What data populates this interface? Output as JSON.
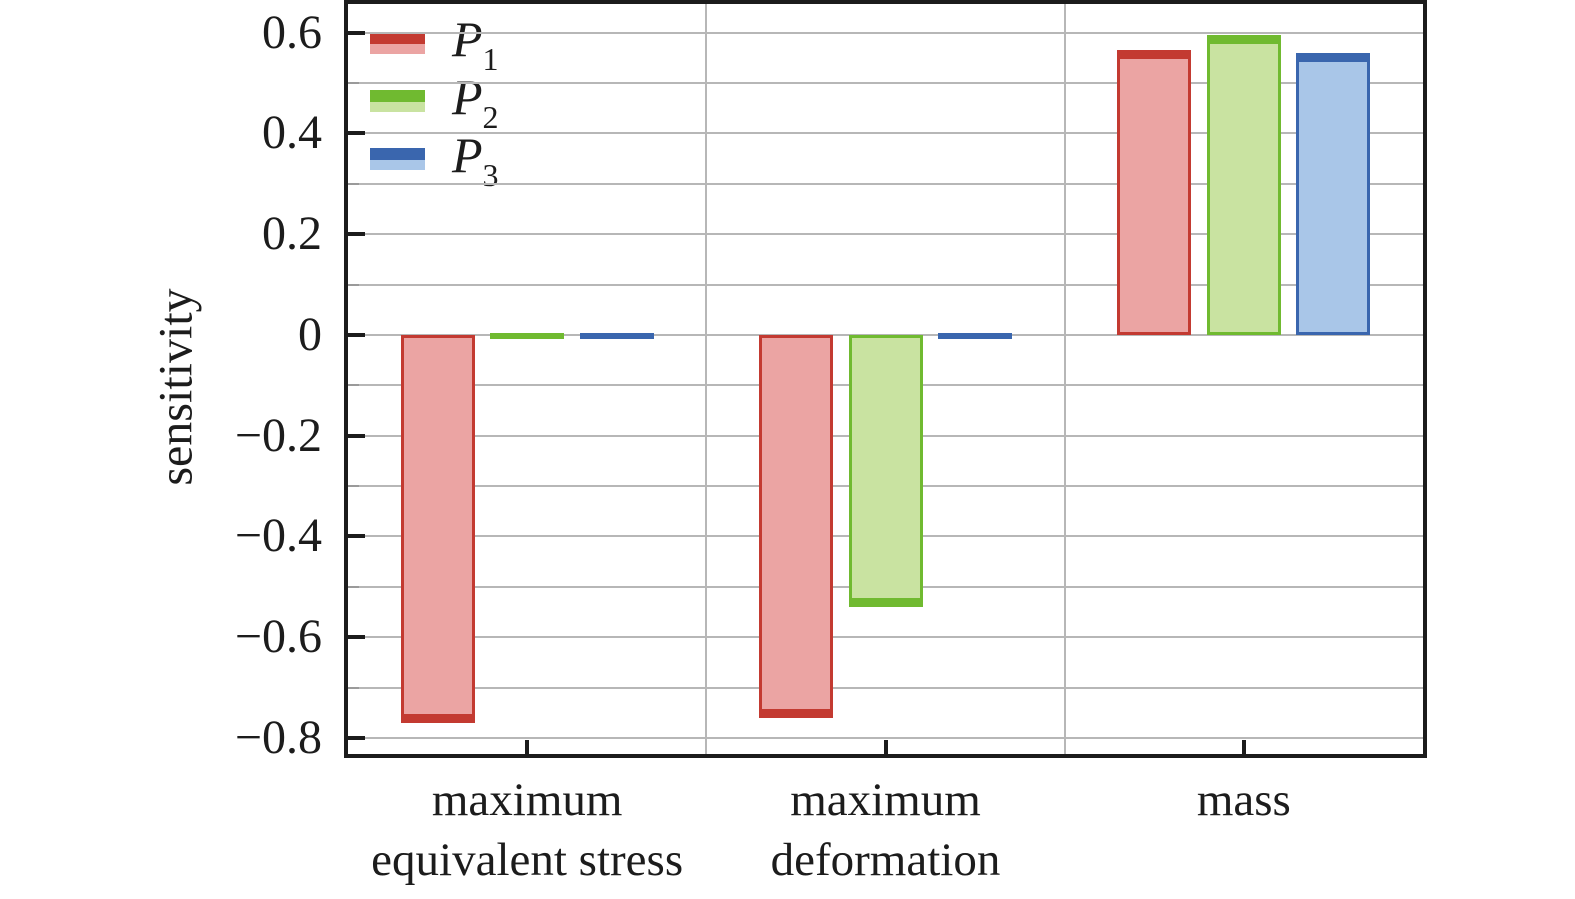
{
  "figure": {
    "background": "#ffffff",
    "axis_color": "#1c1c1c",
    "grid_color": "#b7b7b7",
    "minor_tick_color": "#9a9a9a",
    "text_color": "#1c1c1c"
  },
  "chart_data": {
    "type": "bar",
    "title": "",
    "xlabel": "",
    "ylabel": "sensitivity",
    "categories": [
      "maximum equivalent stress",
      "maximum deformation",
      "mass"
    ],
    "category_label_lines": [
      [
        "maximum",
        "equivalent stress"
      ],
      [
        "maximum",
        "deformation"
      ],
      [
        "mass"
      ]
    ],
    "series": [
      {
        "name": "P1",
        "label_base": "P",
        "label_sub": "1",
        "values": [
          -0.77,
          -0.76,
          0.565
        ],
        "fill": "#EBA4A3",
        "edge": "#C33A31"
      },
      {
        "name": "P2",
        "label_base": "P",
        "label_sub": "2",
        "values": [
          -0.005,
          -0.54,
          0.595
        ],
        "fill": "#C9E3A1",
        "edge": "#70BA30"
      },
      {
        "name": "P3",
        "label_base": "P",
        "label_sub": "3",
        "values": [
          -0.005,
          -0.005,
          0.56
        ],
        "fill": "#A9C6E8",
        "edge": "#3A66AE"
      }
    ],
    "ylim": [
      -0.832,
      0.657
    ],
    "yticks": [
      {
        "v": 0.6,
        "label": "0.6"
      },
      {
        "v": 0.4,
        "label": "0.4"
      },
      {
        "v": 0.2,
        "label": "0.2"
      },
      {
        "v": 0,
        "label": "0"
      },
      {
        "v": -0.2,
        "label": "−0.2"
      },
      {
        "v": -0.4,
        "label": "−0.4"
      },
      {
        "v": -0.6,
        "label": "−0.6"
      },
      {
        "v": -0.8,
        "label": "−0.8"
      }
    ],
    "minor_tick_step": 0.1,
    "grid": "horizontal lines every 0.1 from -0.8 to 0.6; vertical lines at category boundaries",
    "legend_position": "upper-left",
    "legend_entries": [
      "P1",
      "P2",
      "P3"
    ]
  }
}
